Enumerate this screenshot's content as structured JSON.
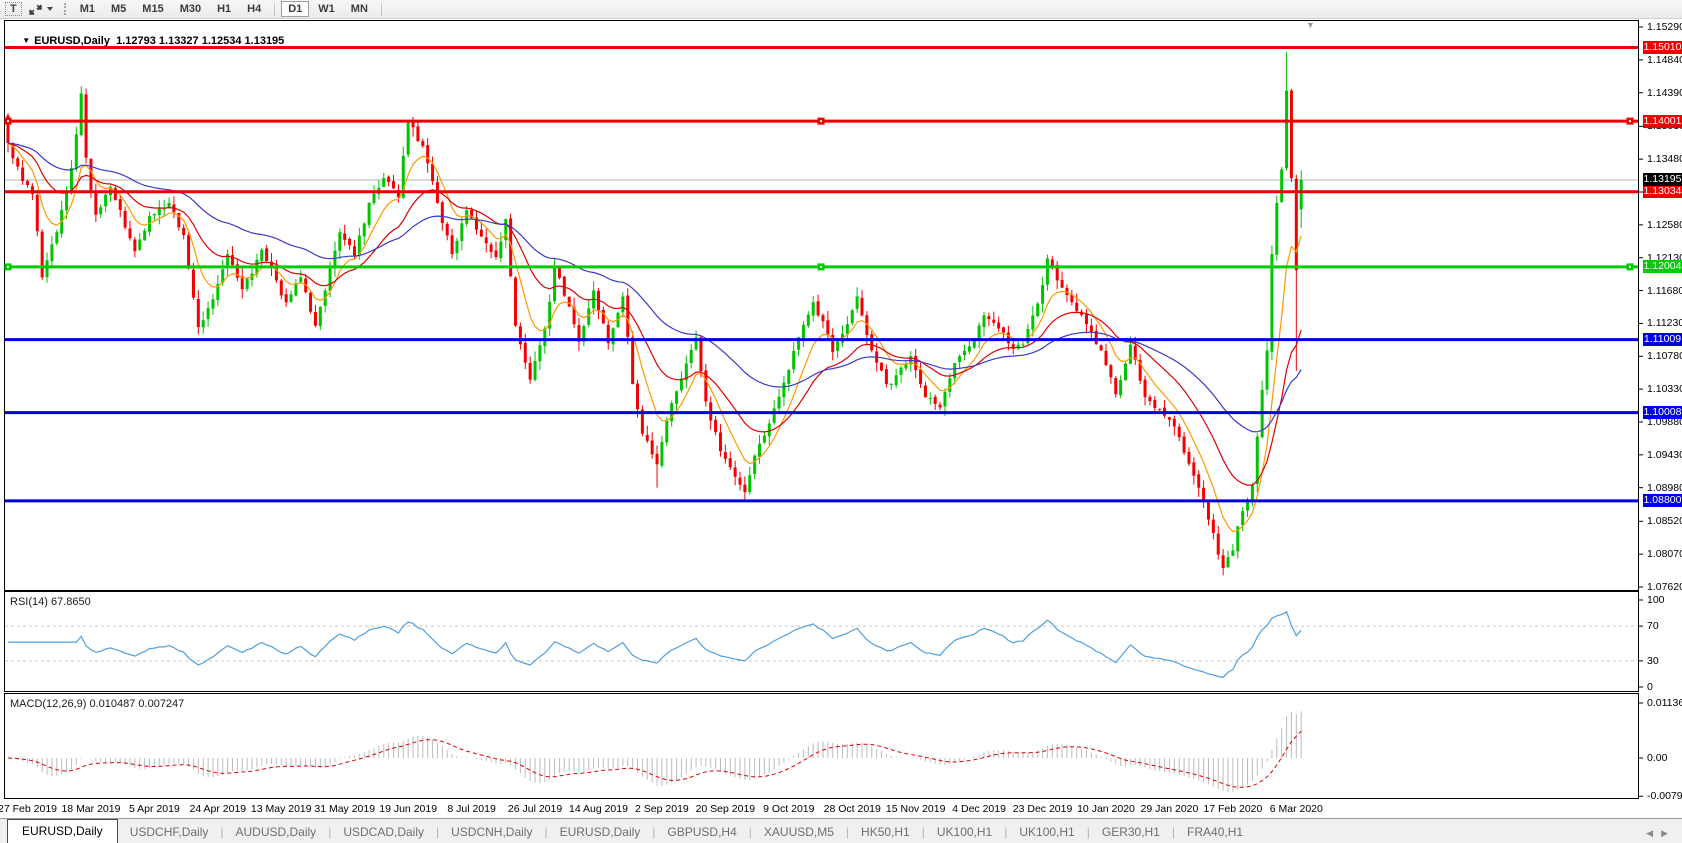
{
  "toolbar": {
    "text_tool_label": "T",
    "timeframes": [
      "M1",
      "M5",
      "M15",
      "M30",
      "H1",
      "H4",
      "D1",
      "W1",
      "MN"
    ],
    "active_timeframe": "D1"
  },
  "chart": {
    "symbol": "EURUSD,Daily",
    "ohlc_text": "1.12793 1.13327 1.12534 1.13195"
  },
  "rsi_panel": {
    "label": "RSI(14) 67.8650"
  },
  "macd_panel": {
    "label": "MACD(12,26,9) 0.010487 0.007247"
  },
  "price_axis": {
    "ticks": [
      "1.15290",
      "1.14840",
      "1.14390",
      "1.13930",
      "1.13480",
      "1.13030",
      "1.12580",
      "1.12130",
      "1.11680",
      "1.11230",
      "1.10780",
      "1.10330",
      "1.09880",
      "1.09430",
      "1.08980",
      "1.08520",
      "1.08070",
      "1.07620"
    ]
  },
  "rsi_axis": {
    "ticks": [
      {
        "label": "100",
        "value": 100
      },
      {
        "label": "70",
        "value": 70
      },
      {
        "label": "30",
        "value": 30
      },
      {
        "label": "0",
        "value": 0
      }
    ]
  },
  "macd_axis": {
    "ticks": [
      {
        "label": "0.011362",
        "value": 0.011362
      },
      {
        "label": "0.00",
        "value": 0
      },
      {
        "label": "-0.0079",
        "value": -0.0079
      }
    ]
  },
  "date_axis": {
    "labels": [
      "27 Feb 2019",
      "18 Mar 2019",
      "5 Apr 2019",
      "24 Apr 2019",
      "13 May 2019",
      "31 May 2019",
      "19 Jun 2019",
      "8 Jul 2019",
      "26 Jul 2019",
      "14 Aug 2019",
      "2 Sep 2019",
      "20 Sep 2019",
      "9 Oct 2019",
      "28 Oct 2019",
      "15 Nov 2019",
      "4 Dec 2019",
      "23 Dec 2019",
      "10 Jan 2020",
      "29 Jan 2020",
      "17 Feb 2020",
      "6 Mar 2020"
    ]
  },
  "tabs": {
    "items": [
      "EURUSD,Daily",
      "USDCHF,Daily",
      "AUDUSD,Daily",
      "USDCAD,Daily",
      "USDCNH,Daily",
      "EURUSD,Daily",
      "GBPUSD,H4",
      "XAUUSD,M5",
      "HK50,H1",
      "UK100,H1",
      "UK100,H1",
      "GER30,H1",
      "FRA40,H1"
    ],
    "active_index": 0
  },
  "colors": {
    "up_candle": "#00c400",
    "down_candle": "#f40000",
    "ma_fast": "#ff9900",
    "ma_mid": "#e00000",
    "ma_slow": "#3a3ac8",
    "rsi_line": "#4f9fe0",
    "rsi_level_dash": "#c8c8c8",
    "macd_hist": "#bcbcbc",
    "macd_signal": "#e00000",
    "current_price_line": "#b4b4b4",
    "current_price_badge": "#000000",
    "axis_red": "#ee0000",
    "axis_green": "#00cc00",
    "axis_blue": "#0000e0"
  },
  "chart_data": {
    "type": "candlestick",
    "symbol": "EURUSD",
    "timeframe": "Daily",
    "bars": 266,
    "ylim": [
      1.0762,
      1.1529
    ],
    "close_anchors": [
      [
        0,
        1.137
      ],
      [
        3,
        1.1318
      ],
      [
        5,
        1.13
      ],
      [
        7,
        1.1186
      ],
      [
        10,
        1.1248
      ],
      [
        13,
        1.1336
      ],
      [
        15,
        1.1438
      ],
      [
        16,
        1.135
      ],
      [
        18,
        1.1272
      ],
      [
        21,
        1.131
      ],
      [
        26,
        1.1222
      ],
      [
        29,
        1.127
      ],
      [
        33,
        1.1288
      ],
      [
        36,
        1.1244
      ],
      [
        39,
        1.1118
      ],
      [
        42,
        1.1156
      ],
      [
        45,
        1.1218
      ],
      [
        48,
        1.117
      ],
      [
        52,
        1.1224
      ],
      [
        55,
        1.1182
      ],
      [
        57,
        1.1152
      ],
      [
        60,
        1.1186
      ],
      [
        63,
        1.112
      ],
      [
        65,
        1.1168
      ],
      [
        68,
        1.1248
      ],
      [
        71,
        1.1216
      ],
      [
        74,
        1.1288
      ],
      [
        77,
        1.1322
      ],
      [
        80,
        1.1296
      ],
      [
        82,
        1.1398
      ],
      [
        85,
        1.1366
      ],
      [
        88,
        1.1288
      ],
      [
        91,
        1.1218
      ],
      [
        94,
        1.1278
      ],
      [
        97,
        1.1242
      ],
      [
        100,
        1.1214
      ],
      [
        102,
        1.1266
      ],
      [
        104,
        1.112
      ],
      [
        107,
        1.1046
      ],
      [
        110,
        1.1116
      ],
      [
        112,
        1.12
      ],
      [
        115,
        1.1146
      ],
      [
        117,
        1.1098
      ],
      [
        120,
        1.1168
      ],
      [
        123,
        1.1096
      ],
      [
        126,
        1.116
      ],
      [
        128,
        1.104
      ],
      [
        130,
        1.0972
      ],
      [
        133,
        1.093
      ],
      [
        136,
        1.1014
      ],
      [
        139,
        1.1068
      ],
      [
        141,
        1.1104
      ],
      [
        143,
        1.1016
      ],
      [
        146,
        1.0948
      ],
      [
        148,
        1.0926
      ],
      [
        151,
        1.0892
      ],
      [
        153,
        1.0942
      ],
      [
        156,
        1.0986
      ],
      [
        159,
        1.1042
      ],
      [
        162,
        1.1104
      ],
      [
        165,
        1.1152
      ],
      [
        167,
        1.1126
      ],
      [
        169,
        1.1084
      ],
      [
        172,
        1.1122
      ],
      [
        174,
        1.116
      ],
      [
        177,
        1.1086
      ],
      [
        180,
        1.104
      ],
      [
        182,
        1.1052
      ],
      [
        185,
        1.1078
      ],
      [
        188,
        1.1022
      ],
      [
        191,
        1.1008
      ],
      [
        193,
        1.1048
      ],
      [
        195,
        1.1078
      ],
      [
        198,
        1.11
      ],
      [
        200,
        1.1134
      ],
      [
        203,
        1.1116
      ],
      [
        206,
        1.1088
      ],
      [
        208,
        1.1094
      ],
      [
        211,
        1.115
      ],
      [
        213,
        1.1212
      ],
      [
        216,
        1.1172
      ],
      [
        218,
        1.1152
      ],
      [
        221,
        1.1122
      ],
      [
        224,
        1.1086
      ],
      [
        227,
        1.1026
      ],
      [
        230,
        1.1094
      ],
      [
        233,
        1.1022
      ],
      [
        236,
        1.1006
      ],
      [
        239,
        1.0982
      ],
      [
        241,
        1.0946
      ],
      [
        244,
        1.0898
      ],
      [
        247,
        1.0836
      ],
      [
        249,
        1.0788
      ],
      [
        251,
        1.0812
      ],
      [
        253,
        1.0866
      ],
      [
        255,
        1.0902
      ],
      [
        256,
        1.0968
      ],
      [
        257,
        1.1032
      ],
      [
        258,
        1.1086
      ],
      [
        259,
        1.1218
      ],
      [
        260,
        1.1288
      ],
      [
        261,
        1.1334
      ],
      [
        262,
        1.1442
      ],
      [
        263,
        1.1322
      ],
      [
        264,
        1.1196
      ],
      [
        265,
        1.13195
      ]
    ],
    "wick_overrides": {
      "15": {
        "h": 1.1448
      },
      "39": {
        "l": 1.1108
      },
      "133": {
        "l": 1.0898
      },
      "151": {
        "l": 1.0879
      },
      "249": {
        "l": 1.0778
      },
      "262": {
        "h": 1.1495
      },
      "264": {
        "l": 1.1058
      }
    },
    "first_open": 1.1408,
    "last_candle": {
      "open": 1.12793,
      "high": 1.13327,
      "low": 1.12534,
      "close": 1.13195
    },
    "moving_averages": [
      {
        "name": "fast",
        "type": "ema",
        "period": 8,
        "color_key": "ma_fast"
      },
      {
        "name": "mid",
        "type": "ema",
        "period": 21,
        "color_key": "ma_mid"
      },
      {
        "name": "slow",
        "type": "ema",
        "period": 50,
        "color_key": "ma_slow"
      }
    ],
    "hlines": [
      {
        "price": 1.1501,
        "label": "1.15010",
        "color": "#ee0000",
        "selected": false
      },
      {
        "price": 1.14001,
        "label": "1.14001",
        "color": "#ee0000",
        "selected": true
      },
      {
        "price": 1.13034,
        "label": "1.13034",
        "color": "#ee0000",
        "selected": false
      },
      {
        "price": 1.12004,
        "label": "1.12004",
        "color": "#00cc00",
        "selected": true
      },
      {
        "price": 1.11009,
        "label": "1.11009",
        "color": "#0000e0",
        "selected": false
      },
      {
        "price": 1.10008,
        "label": "1.10008",
        "color": "#0000e0",
        "selected": false
      },
      {
        "price": 1.088,
        "label": "1.08800",
        "color": "#0000e0",
        "selected": false
      }
    ],
    "current_price": {
      "value": 1.13195,
      "label": "1.13195"
    },
    "rsi": {
      "period": 14,
      "current": 67.865,
      "levels": [
        70,
        30
      ],
      "range": [
        0,
        100
      ]
    },
    "macd": {
      "fast": 12,
      "slow": 26,
      "signal_period": 9,
      "current_main": 0.010487,
      "current_signal": 0.007247,
      "range": [
        -0.0079,
        0.011362
      ]
    }
  }
}
